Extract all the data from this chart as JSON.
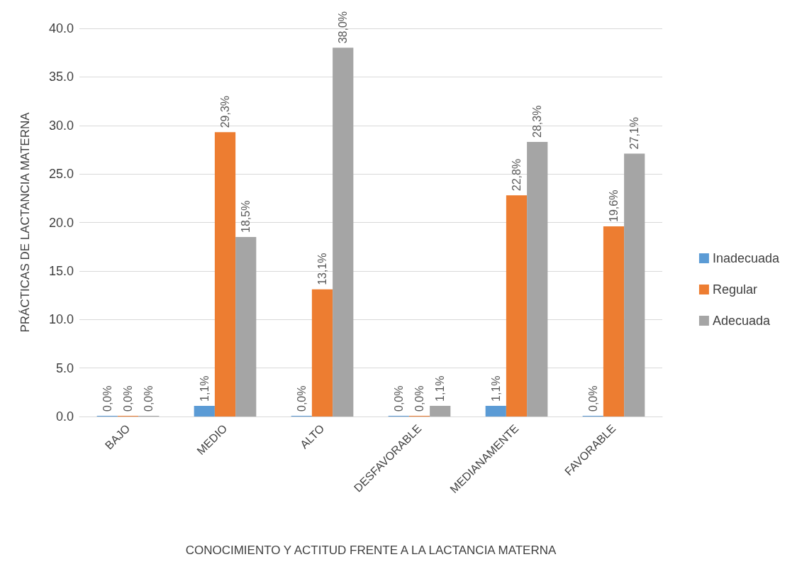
{
  "chart_data": {
    "type": "bar",
    "xlabel": "CONOCIMIENTO Y ACTITUD FRENTE A LA LACTANCIA MATERNA",
    "ylabel": "PRÁCTICAS DE LACTANCIA MATERNA",
    "categories": [
      "BAJO",
      "MEDIO",
      "ALTO",
      "DESFAVORABLE",
      "MEDIANAMENTE",
      "FAVORABLE"
    ],
    "series": [
      {
        "name": "Inadecuada",
        "color": "#5b9bd5",
        "values": [
          0,
          1.1,
          0,
          0,
          1.1,
          0
        ],
        "value_labels": [
          "0,0%",
          "1,1%",
          "0,0%",
          "0,0%",
          "1,1%",
          "0,0%"
        ]
      },
      {
        "name": "Regular",
        "color": "#ed7d31",
        "values": [
          0,
          29.3,
          13.1,
          0,
          22.8,
          19.6
        ],
        "value_labels": [
          "0,0%",
          "29,3%",
          "13,1%",
          "0,0%",
          "22,8%",
          "19,6%"
        ]
      },
      {
        "name": "Adecuada",
        "color": "#a5a5a5",
        "values": [
          0,
          18.5,
          38.0,
          1.1,
          28.3,
          27.1
        ],
        "value_labels": [
          "0,0%",
          "18,5%",
          "38,0%",
          "1,1%",
          "28,3%",
          "27,1%"
        ]
      }
    ],
    "ylim": [
      0,
      40
    ],
    "yticks": [
      {
        "value": 0,
        "label": "0.0"
      },
      {
        "value": 5,
        "label": "5.0"
      },
      {
        "value": 10,
        "label": "10.0"
      },
      {
        "value": 15,
        "label": "15.0"
      },
      {
        "value": 20,
        "label": "20.0"
      },
      {
        "value": 25,
        "label": "25.0"
      },
      {
        "value": 30,
        "label": "30.0"
      },
      {
        "value": 35,
        "label": "35.0"
      },
      {
        "value": 40,
        "label": "40.0"
      }
    ],
    "grid": "y",
    "legend": "right"
  }
}
